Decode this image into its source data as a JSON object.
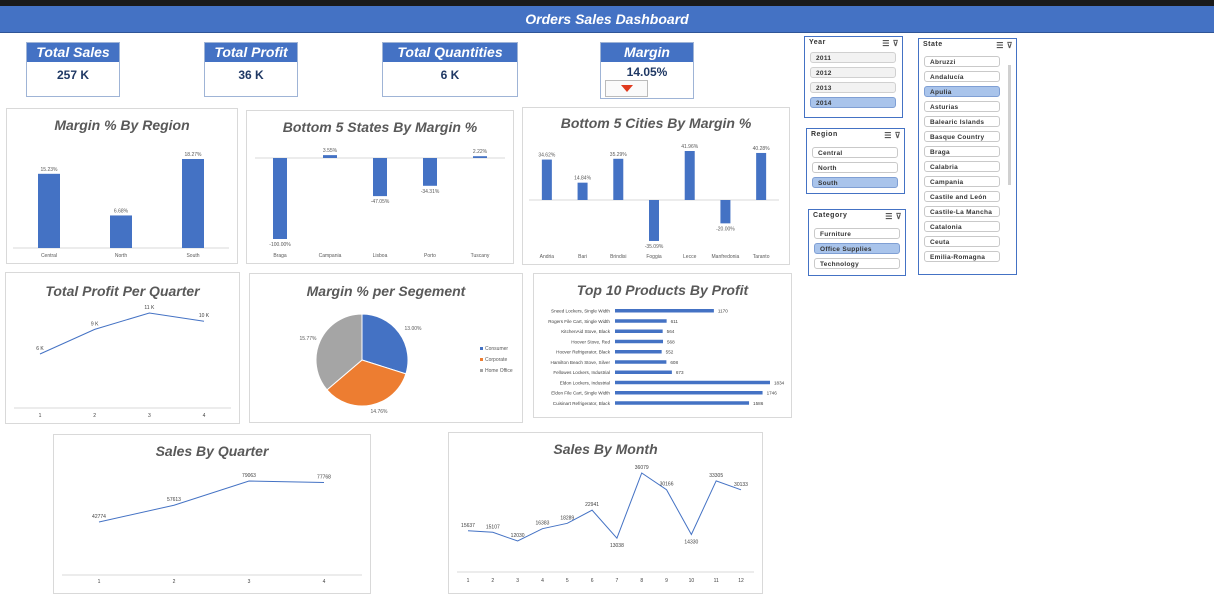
{
  "title": "Orders Sales Dashboard",
  "kpis": {
    "total_sales": {
      "label": "Total Sales",
      "value": "257 K"
    },
    "total_profit": {
      "label": "Total Profit",
      "value": "36 K"
    },
    "total_quantities": {
      "label": "Total Quantities",
      "value": "6 K"
    },
    "margin": {
      "label": "Margin",
      "value": "14.05%"
    }
  },
  "colors": {
    "accent": "#4472c4",
    "orange": "#ed7d31",
    "gray": "#a5a5a5",
    "arrow": "#e03a1e"
  },
  "titles": {
    "margin_region": "Margin % By Region",
    "bottom_states": "Bottom 5 States By Margin %",
    "bottom_cities": "Bottom 5 Cities By  Margin %",
    "profit_quarter": "Total Profit Per Quarter",
    "margin_segment": "Margin % per Segement",
    "top_products": "Top 10 Products By Profit",
    "sales_quarter": "Sales By Quarter",
    "sales_month": "Sales By Month"
  },
  "chart_data": [
    {
      "id": "margin_region",
      "type": "bar",
      "categories": [
        "Central",
        "North",
        "South"
      ],
      "values": [
        15.23,
        6.68,
        18.27
      ],
      "labels": [
        "15.23%",
        "6.68%",
        "18.27%"
      ]
    },
    {
      "id": "bottom_states",
      "type": "bar",
      "categories": [
        "Braga",
        "Campania",
        "Lisboa",
        "Porto",
        "Tuscany"
      ],
      "values": [
        -100.0,
        3.55,
        -47.05,
        -34.31,
        2.22
      ],
      "labels": [
        "-100.00%",
        "3.55%",
        "-47.05%",
        "-34.31%",
        "2.22%"
      ]
    },
    {
      "id": "bottom_cities",
      "type": "bar",
      "categories": [
        "Andria",
        "Bari",
        "Brindisi",
        "Foggia",
        "Lecce",
        "Manfredonia",
        "Taranto"
      ],
      "values": [
        34.62,
        14.84,
        35.29,
        -35.09,
        41.96,
        -20.0,
        40.28
      ],
      "labels": [
        "34.62%",
        "14.84%",
        "35.29%",
        "-35.09%",
        "41.96%",
        "-20.00%",
        "40.28%"
      ]
    },
    {
      "id": "profit_quarter",
      "type": "line",
      "categories": [
        "1",
        "2",
        "3",
        "4"
      ],
      "values": [
        6,
        9,
        11,
        10
      ],
      "labels": [
        "6 K",
        "9 K",
        "11 K",
        "10 K"
      ]
    },
    {
      "id": "margin_segment",
      "type": "pie",
      "series": [
        {
          "name": "Consumer",
          "value": 13.0,
          "label": "13.00%"
        },
        {
          "name": "Corporate",
          "value": 14.76,
          "label": "14.76%"
        },
        {
          "name": "Home Office",
          "value": 15.77,
          "label": "15.77%"
        }
      ]
    },
    {
      "id": "top_products",
      "type": "bar",
      "orientation": "horizontal",
      "categories": [
        "Sneed Lockers, Single Width",
        "Rogers File Cart, Single Width",
        "KitchenAid Stove, Black",
        "Hoover Stove, Red",
        "Hoover Refrigerator, Black",
        "Hamilton Beach Stove, Silver",
        "Fellowes Lockers, Industrial",
        "Eldon Lockers, Industrial",
        "Eldon File Cart, Single Width",
        "Cuisinart Refrigerator, Black"
      ],
      "values": [
        1170,
        611,
        564,
        568,
        552,
        608,
        673,
        1834,
        1746,
        1586
      ]
    },
    {
      "id": "sales_quarter",
      "type": "line",
      "categories": [
        "1",
        "2",
        "3",
        "4"
      ],
      "values": [
        42774,
        57613,
        79063,
        77768
      ]
    },
    {
      "id": "sales_month",
      "type": "line",
      "categories": [
        "1",
        "2",
        "3",
        "4",
        "5",
        "6",
        "7",
        "8",
        "9",
        "10",
        "11",
        "12"
      ],
      "values": [
        15637,
        15107,
        12030,
        16383,
        18289,
        22941,
        13038,
        36079,
        30166,
        14330,
        33305,
        30133
      ]
    }
  ],
  "slicers": {
    "year": {
      "title": "Year",
      "items": [
        {
          "label": "2011",
          "state": "normal"
        },
        {
          "label": "2012",
          "state": "normal"
        },
        {
          "label": "2013",
          "state": "normal"
        },
        {
          "label": "2014",
          "state": "selected"
        }
      ]
    },
    "region": {
      "title": "Region",
      "items": [
        {
          "label": "Central",
          "state": "normal"
        },
        {
          "label": "North",
          "state": "normal"
        },
        {
          "label": "South",
          "state": "selected"
        }
      ]
    },
    "category": {
      "title": "Category",
      "items": [
        {
          "label": "Furniture",
          "state": "normal"
        },
        {
          "label": "Office Supplies",
          "state": "selected"
        },
        {
          "label": "Technology",
          "state": "normal"
        }
      ]
    },
    "state": {
      "title": "State",
      "items": [
        {
          "label": "Abruzzi",
          "state": "normal"
        },
        {
          "label": "Andalucía",
          "state": "normal"
        },
        {
          "label": "Apulia",
          "state": "selected"
        },
        {
          "label": "Asturias",
          "state": "normal"
        },
        {
          "label": "Balearic Islands",
          "state": "normal"
        },
        {
          "label": "Basque Country",
          "state": "normal"
        },
        {
          "label": "Braga",
          "state": "normal"
        },
        {
          "label": "Calabria",
          "state": "normal"
        },
        {
          "label": "Campania",
          "state": "normal"
        },
        {
          "label": "Castile and León",
          "state": "normal"
        },
        {
          "label": "Castile-La Mancha",
          "state": "normal"
        },
        {
          "label": "Catalonia",
          "state": "normal"
        },
        {
          "label": "Ceuta",
          "state": "normal"
        },
        {
          "label": "Emilia-Romagna",
          "state": "normal"
        }
      ]
    }
  }
}
